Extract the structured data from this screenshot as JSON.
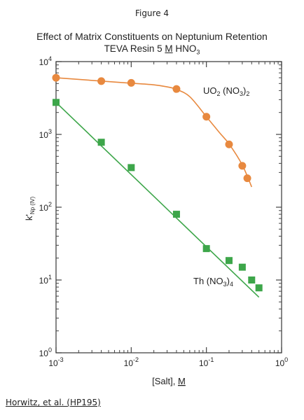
{
  "figure_label": "Figure 4",
  "source_note": "Horwitz, et al. (HP195)",
  "chart_data": {
    "type": "scatter",
    "title": "Effect of Matrix Constituents on Neptunium Retention",
    "subtitle": {
      "resin": "TEVA Resin",
      "conc": "5",
      "unit": "M",
      "acid_base": "HNO",
      "acid_sub": "3"
    },
    "xlabel": {
      "text": "[Salt], ",
      "unit": "M"
    },
    "ylabel": {
      "main": "k'",
      "sub": "Np (IV)"
    },
    "xscale": "log",
    "yscale": "log",
    "xlim": [
      0.001,
      1
    ],
    "ylim": [
      1,
      10000
    ],
    "x_ticks": [
      {
        "base": "10",
        "exp": "-3"
      },
      {
        "base": "10",
        "exp": "-2"
      },
      {
        "base": "10",
        "exp": "-1"
      },
      {
        "base": "10",
        "exp": "0"
      }
    ],
    "y_ticks": [
      {
        "base": "10",
        "exp": "0"
      },
      {
        "base": "10",
        "exp": "1"
      },
      {
        "base": "10",
        "exp": "2"
      },
      {
        "base": "10",
        "exp": "3"
      },
      {
        "base": "10",
        "exp": "4"
      }
    ],
    "grid": false,
    "series": [
      {
        "label": {
          "base": "UO",
          "s1": "2",
          "mid": " (NO",
          "s2": "3",
          "end": ")",
          "s3": "2"
        },
        "color": "#e8893f",
        "marker": "circle",
        "points": [
          {
            "x": 0.001,
            "y": 6000
          },
          {
            "x": 0.004,
            "y": 5400
          },
          {
            "x": 0.01,
            "y": 5100
          },
          {
            "x": 0.04,
            "y": 4200
          },
          {
            "x": 0.1,
            "y": 1750
          },
          {
            "x": 0.2,
            "y": 730
          },
          {
            "x": 0.3,
            "y": 370
          },
          {
            "x": 0.35,
            "y": 250
          }
        ],
        "curve": [
          {
            "x": 0.001,
            "y": 6000
          },
          {
            "x": 0.004,
            "y": 5400
          },
          {
            "x": 0.01,
            "y": 5050
          },
          {
            "x": 0.02,
            "y": 4800
          },
          {
            "x": 0.03,
            "y": 4500
          },
          {
            "x": 0.04,
            "y": 4150
          },
          {
            "x": 0.06,
            "y": 3300
          },
          {
            "x": 0.1,
            "y": 1750
          },
          {
            "x": 0.15,
            "y": 1050
          },
          {
            "x": 0.2,
            "y": 740
          },
          {
            "x": 0.3,
            "y": 380
          },
          {
            "x": 0.4,
            "y": 190
          }
        ]
      },
      {
        "label": {
          "base": "Th (NO",
          "s1": "3",
          "mid": ")",
          "s2": "4",
          "end": "",
          "s3": ""
        },
        "color": "#3da64a",
        "marker": "square",
        "points": [
          {
            "x": 0.001,
            "y": 2750
          },
          {
            "x": 0.004,
            "y": 780
          },
          {
            "x": 0.01,
            "y": 350
          },
          {
            "x": 0.04,
            "y": 80
          },
          {
            "x": 0.1,
            "y": 27
          },
          {
            "x": 0.2,
            "y": 18.5
          },
          {
            "x": 0.3,
            "y": 15
          },
          {
            "x": 0.4,
            "y": 10
          },
          {
            "x": 0.5,
            "y": 7.8
          }
        ],
        "fit_line": [
          {
            "x": 0.001,
            "y": 2750
          },
          {
            "x": 0.5,
            "y": 5.8
          }
        ]
      }
    ]
  }
}
